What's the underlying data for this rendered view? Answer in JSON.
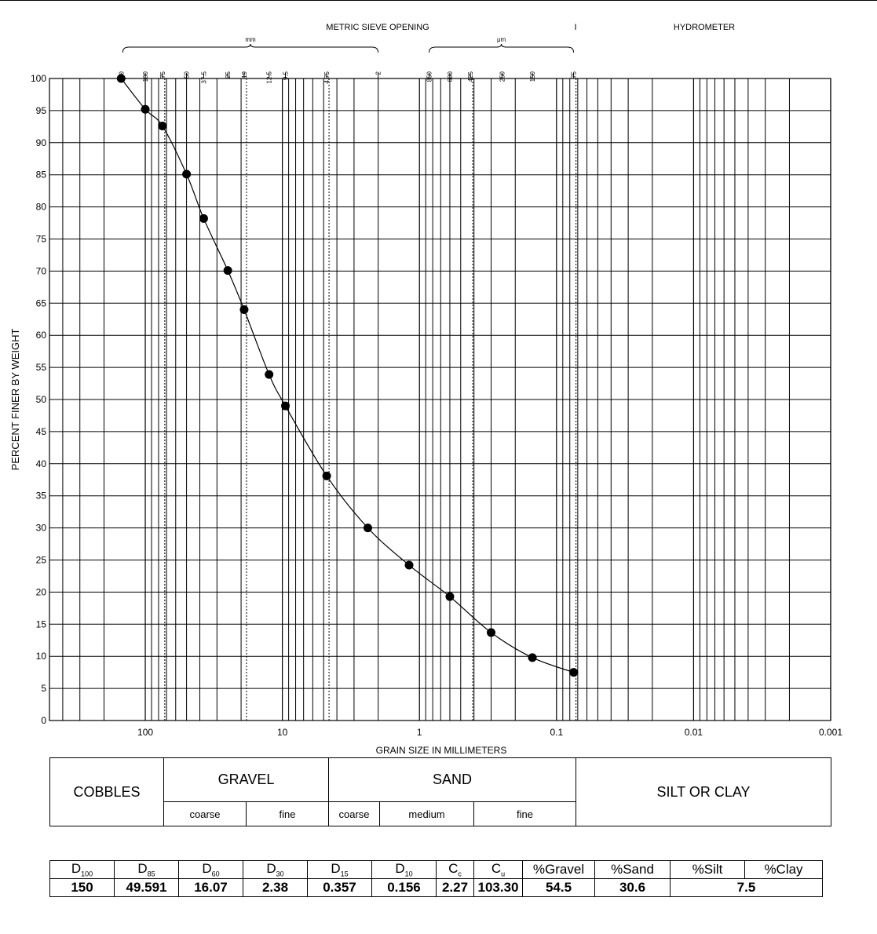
{
  "chart_data": {
    "type": "line",
    "title": "",
    "xlabel": "GRAIN SIZE IN MILLIMETERS",
    "ylabel": "PERCENT FINER BY WEIGHT",
    "x_scale": "log",
    "x_reversed": true,
    "xlim": [
      500,
      0.001
    ],
    "ylim": [
      0,
      100
    ],
    "x_tick_labels": [
      {
        "value": 100,
        "label": "100"
      },
      {
        "value": 10,
        "label": "10"
      },
      {
        "value": 1,
        "label": "1"
      },
      {
        "value": 0.1,
        "label": "0.1"
      },
      {
        "value": 0.01,
        "label": "0.01"
      },
      {
        "value": 0.001,
        "label": "0.001"
      }
    ],
    "y_ticks": [
      0,
      5,
      10,
      15,
      20,
      25,
      30,
      35,
      40,
      45,
      50,
      55,
      60,
      65,
      70,
      75,
      80,
      85,
      90,
      95,
      100
    ],
    "grid": true,
    "header": {
      "sieve_title": "METRIC SIEVE OPENING",
      "mm_label": "mm",
      "um_label": "μm",
      "divider_label": "I",
      "hydrometer_label": "HYDROMETER"
    },
    "sieves": [
      {
        "size": 150,
        "label": "150"
      },
      {
        "size": 100,
        "label": "100"
      },
      {
        "size": 75,
        "label": "75"
      },
      {
        "size": 50,
        "label": "50"
      },
      {
        "size": 37.5,
        "label": "37.5"
      },
      {
        "size": 25,
        "label": "25"
      },
      {
        "size": 19,
        "label": "19"
      },
      {
        "size": 12.5,
        "label": "12.5"
      },
      {
        "size": 9.5,
        "label": "9.5"
      },
      {
        "size": 4.75,
        "label": "4.75"
      },
      {
        "size": 2,
        "label": "2"
      },
      {
        "size": 0.85,
        "label": "850"
      },
      {
        "size": 0.6,
        "label": "600"
      },
      {
        "size": 0.425,
        "label": "425"
      },
      {
        "size": 0.25,
        "label": "250"
      },
      {
        "size": 0.15,
        "label": "150"
      },
      {
        "size": 0.075,
        "label": "75"
      }
    ],
    "dotted_lines": [
      75,
      19,
      4.75,
      0.425,
      0.075
    ],
    "series": [
      {
        "x": [
          150,
          100,
          75,
          50,
          37.5,
          25,
          19,
          12.5,
          9.5,
          4.75,
          2.38,
          1.19,
          0.6,
          0.3,
          0.15,
          0.075
        ],
        "y": [
          100,
          95.2,
          92.6,
          85.1,
          78.2,
          70.1,
          64,
          53.9,
          49,
          38.1,
          30,
          24.2,
          19.3,
          13.7,
          9.8,
          7.5
        ]
      }
    ]
  },
  "classification": {
    "cobbles": "COBBLES",
    "gravel": "GRAVEL",
    "gravel_coarse": "coarse",
    "gravel_fine": "fine",
    "sand": "SAND",
    "sand_coarse": "coarse",
    "sand_medium": "medium",
    "sand_fine": "fine",
    "silt_clay": "SILT OR CLAY"
  },
  "parameters": {
    "headers": [
      {
        "main": "D",
        "sub": "100"
      },
      {
        "main": "D",
        "sub": "85"
      },
      {
        "main": "D",
        "sub": "60"
      },
      {
        "main": "D",
        "sub": "30"
      },
      {
        "main": "D",
        "sub": "15"
      },
      {
        "main": "D",
        "sub": "10"
      },
      {
        "main": "C",
        "sub": "c"
      },
      {
        "main": "C",
        "sub": "u"
      },
      {
        "main": "%Gravel",
        "sub": ""
      },
      {
        "main": "%Sand",
        "sub": ""
      },
      {
        "main": "%Silt",
        "sub": ""
      },
      {
        "main": "%Clay",
        "sub": ""
      }
    ],
    "values": [
      "150",
      "49.591",
      "16.07",
      "2.38",
      "0.357",
      "0.156",
      "2.27",
      "103.30",
      "54.5",
      "30.6",
      "7.5"
    ]
  }
}
